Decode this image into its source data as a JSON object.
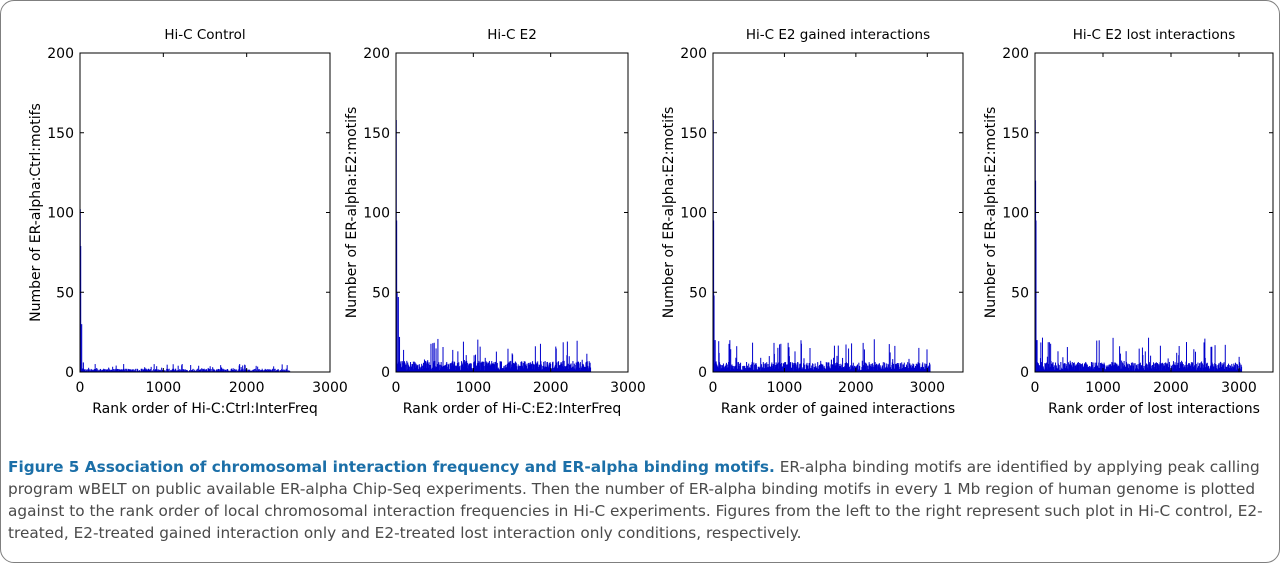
{
  "chart_data": [
    {
      "type": "bar",
      "title": "Hi-C Control",
      "xlabel": "Rank order of Hi-C:Ctrl:InterFreq",
      "ylabel": "Number of ER-alpha:Ctrl:motifs",
      "xlim": [
        0,
        3000
      ],
      "ylim": [
        0,
        200
      ],
      "xticks": [
        "0",
        "1000",
        "2000",
        "3000"
      ],
      "yticks": [
        "0",
        "50",
        "100",
        "150",
        "200"
      ],
      "grid": false,
      "n": 2520,
      "spikes": [
        {
          "x": 3,
          "y": 102
        },
        {
          "x": 8,
          "y": 79
        },
        {
          "x": 20,
          "y": 30
        },
        {
          "x": 40,
          "y": 6
        }
      ],
      "baseline": {
        "from": 0,
        "to": 2520,
        "typical": 1.5,
        "max": 5
      },
      "color": "#0000cc"
    },
    {
      "type": "bar",
      "title": "Hi-C E2",
      "xlabel": "Rank order of Hi-C:E2:InterFreq",
      "ylabel": "Number of ER-alpha:E2:motifs",
      "xlim": [
        0,
        3000
      ],
      "ylim": [
        0,
        200
      ],
      "xticks": [
        "0",
        "1000",
        "2000",
        "3000"
      ],
      "yticks": [
        "0",
        "50",
        "100",
        "150",
        "200"
      ],
      "grid": false,
      "n": 2520,
      "spikes": [
        {
          "x": 3,
          "y": 158
        },
        {
          "x": 8,
          "y": 95
        },
        {
          "x": 14,
          "y": 50
        },
        {
          "x": 30,
          "y": 47
        },
        {
          "x": 45,
          "y": 22
        }
      ],
      "baseline": {
        "from": 0,
        "to": 2520,
        "typical": 5,
        "max": 21
      },
      "color": "#0000cc"
    },
    {
      "type": "bar",
      "title": "Hi-C E2 gained interactions",
      "xlabel": "Rank order of gained interactions",
      "ylabel": "Number of ER-alpha:E2:motifs",
      "xlim": [
        0,
        3500
      ],
      "ylim": [
        0,
        200
      ],
      "xticks": [
        "0",
        "1000",
        "2000",
        "3000"
      ],
      "yticks": [
        "0",
        "50",
        "100",
        "150",
        "200"
      ],
      "grid": false,
      "n": 3040,
      "spikes": [
        {
          "x": 3,
          "y": 158
        },
        {
          "x": 8,
          "y": 95
        },
        {
          "x": 14,
          "y": 48
        },
        {
          "x": 30,
          "y": 20
        }
      ],
      "baseline": {
        "from": 0,
        "to": 3040,
        "typical": 4.5,
        "max": 22
      },
      "color": "#0000cc"
    },
    {
      "type": "bar",
      "title": "Hi-C E2 lost interactions",
      "xlabel": "Rank order of lost interactions",
      "ylabel": "Number of ER-alpha:E2:motifs",
      "xlim": [
        0,
        3500
      ],
      "ylim": [
        0,
        200
      ],
      "xticks": [
        "0",
        "1000",
        "2000",
        "3000"
      ],
      "yticks": [
        "0",
        "50",
        "100",
        "150",
        "200"
      ],
      "grid": false,
      "n": 3040,
      "spikes": [
        {
          "x": 3,
          "y": 158
        },
        {
          "x": 8,
          "y": 120
        },
        {
          "x": 14,
          "y": 95
        },
        {
          "x": 30,
          "y": 20
        }
      ],
      "baseline": {
        "from": 0,
        "to": 3040,
        "typical": 4.5,
        "max": 22
      },
      "color": "#0000cc"
    }
  ],
  "caption": {
    "title": "Figure 5 Association of chromosomal interaction frequency and ER-alpha binding motifs.",
    "body": " ER-alpha binding motifs are identified by applying peak calling program wBELT on public available ER-alpha Chip-Seq experiments. Then the number of ER-alpha binding motifs in every 1 Mb region of human genome is plotted against to the rank order of local chromosomal interaction frequencies in Hi-C experiments. Figures from the left to the right represent such plot in Hi-C control, E2-treated, E2-treated gained interaction only and E2-treated lost interaction only conditions, respectively."
  }
}
